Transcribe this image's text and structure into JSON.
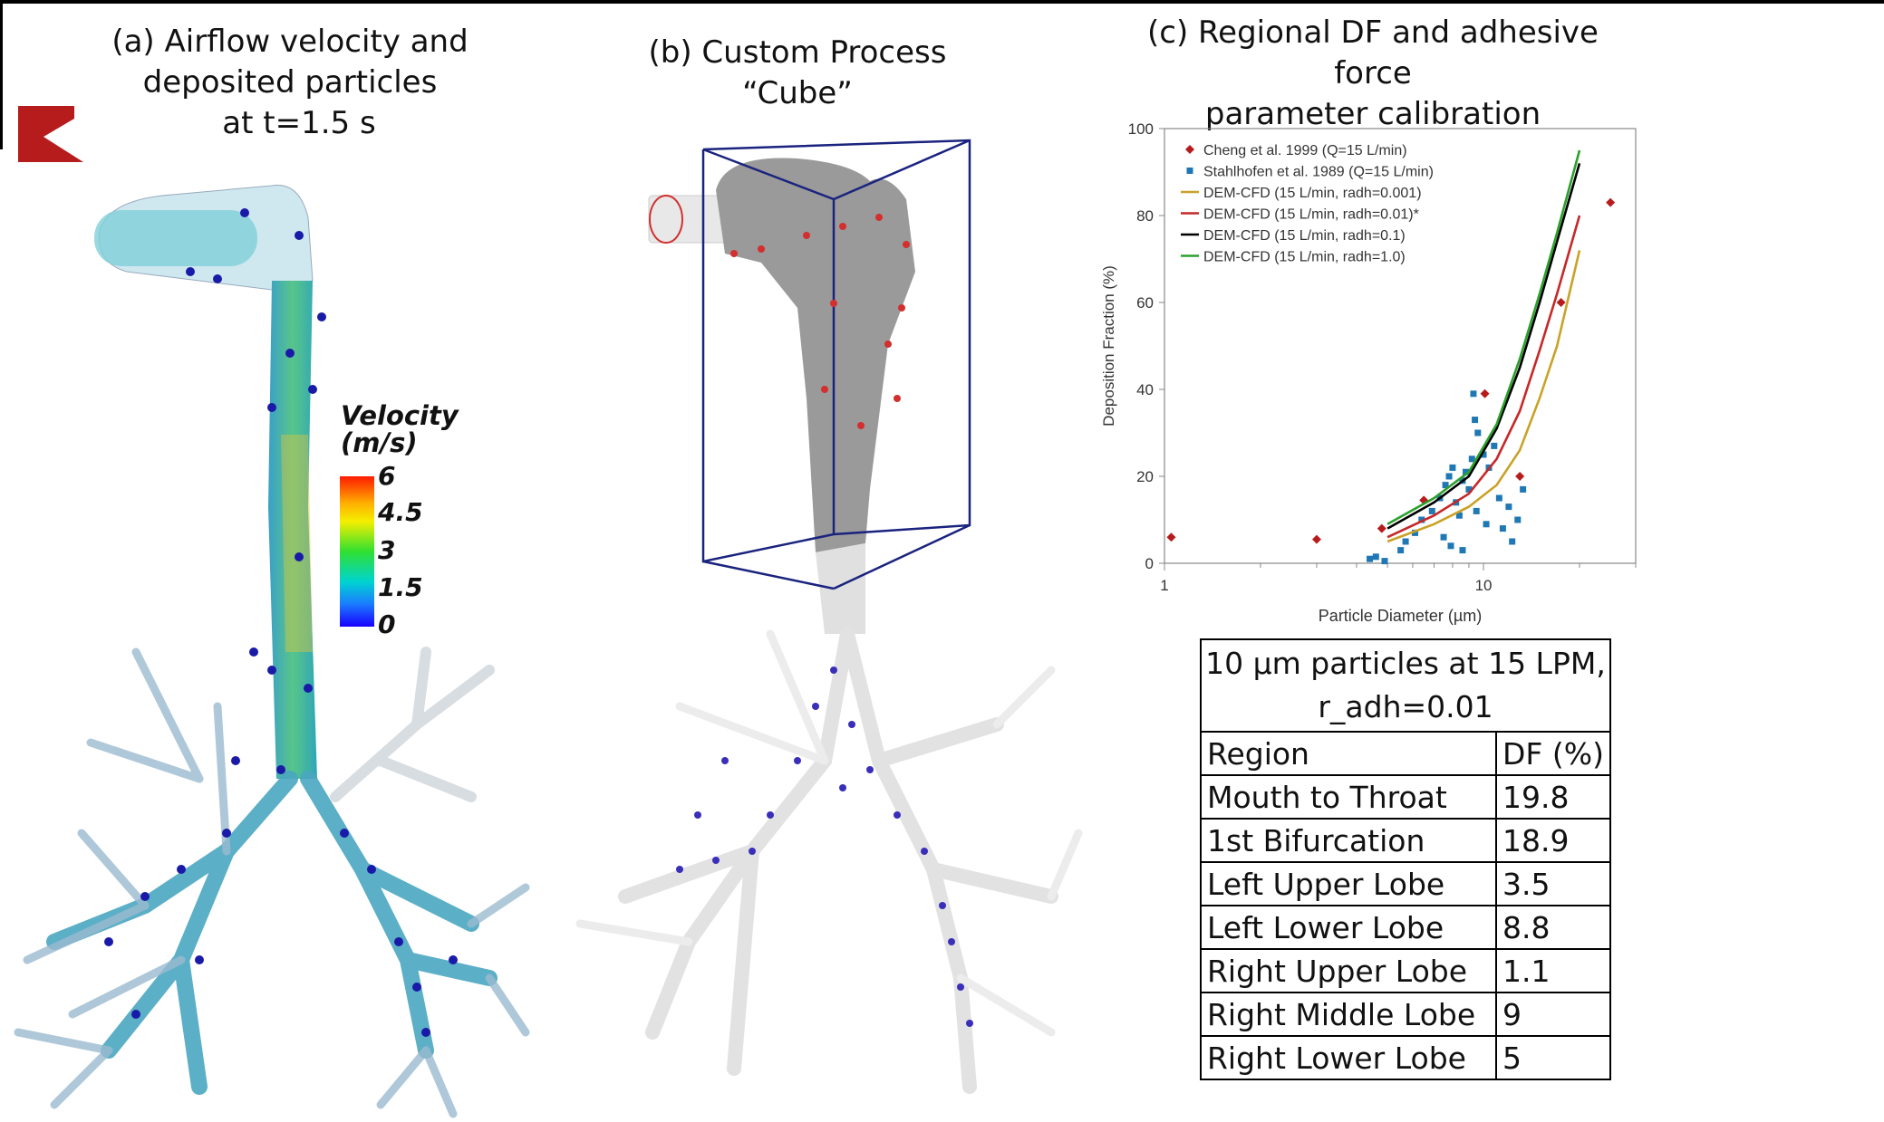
{
  "panel_a": {
    "title_lines": [
      "(a)  Airflow velocity and",
      "deposited particles",
      "at t=1.5 s"
    ],
    "colorbar": {
      "title_lines": [
        "Velocity",
        "(m/s)"
      ],
      "ticks": [
        "6",
        "4.5",
        "3",
        "1.5",
        "0"
      ],
      "colors": [
        "#ff1a00",
        "#f5ef00",
        "#30e030",
        "#00d4d0",
        "#1a00ff"
      ]
    }
  },
  "panel_b": {
    "title": "(b) Custom Process “Cube”"
  },
  "panel_c": {
    "title_lines": [
      "(c) Regional DF and adhesive force",
      "parameter calibration"
    ]
  },
  "chart_data": {
    "type": "scatter",
    "xlabel": "Particle Diameter (µm)",
    "ylabel": "Deposition Fraction (%)",
    "xscale": "log",
    "xlim": [
      1,
      30
    ],
    "ylim": [
      0,
      100
    ],
    "x_tick_labels": [
      "1",
      "10"
    ],
    "y_tick_labels": [
      "0",
      "20",
      "40",
      "60",
      "80",
      "100"
    ],
    "legend_position": "top-left",
    "series": [
      {
        "name": "Cheng et al. 1999 (Q=15 L/min)",
        "marker": "diamond",
        "color": "#b71c1c",
        "points": [
          [
            1.05,
            6
          ],
          [
            3.0,
            5.5
          ],
          [
            4.8,
            8
          ],
          [
            6.5,
            14.5
          ],
          [
            10.1,
            39
          ],
          [
            13.0,
            20
          ],
          [
            17.5,
            60
          ],
          [
            25.0,
            83
          ]
        ]
      },
      {
        "name": "Stahlhofen et al. 1989 (Q=15 L/min)",
        "marker": "square",
        "color": "#1f77b4",
        "points": [
          [
            4.4,
            1
          ],
          [
            4.6,
            1.5
          ],
          [
            4.9,
            0.5
          ],
          [
            5.5,
            3
          ],
          [
            5.7,
            5
          ],
          [
            6.1,
            7
          ],
          [
            6.4,
            10
          ],
          [
            6.9,
            12
          ],
          [
            7.3,
            15
          ],
          [
            7.6,
            18
          ],
          [
            7.8,
            20
          ],
          [
            8.0,
            22
          ],
          [
            8.2,
            14
          ],
          [
            8.4,
            11
          ],
          [
            8.6,
            19
          ],
          [
            8.8,
            21
          ],
          [
            9.0,
            17
          ],
          [
            9.2,
            24
          ],
          [
            9.4,
            33
          ],
          [
            9.3,
            39
          ],
          [
            9.6,
            30
          ],
          [
            10.0,
            25
          ],
          [
            10.4,
            22
          ],
          [
            10.8,
            27
          ],
          [
            11.2,
            15
          ],
          [
            11.5,
            8
          ],
          [
            12.0,
            13
          ],
          [
            12.3,
            5
          ],
          [
            12.8,
            10
          ],
          [
            13.3,
            17
          ],
          [
            7.5,
            6
          ],
          [
            7.9,
            4
          ],
          [
            8.6,
            3
          ],
          [
            9.5,
            12
          ],
          [
            10.2,
            9
          ]
        ]
      },
      {
        "name": "DEM-CFD (15 L/min, radh=0.001)",
        "type": "line",
        "color": "#c9a227",
        "points": [
          [
            5.0,
            5
          ],
          [
            7.0,
            9
          ],
          [
            9.0,
            13
          ],
          [
            11.0,
            18
          ],
          [
            13.0,
            26
          ],
          [
            15.0,
            38
          ],
          [
            17.0,
            50
          ],
          [
            20.0,
            72
          ]
        ]
      },
      {
        "name": "DEM-CFD (15 L/min, radh=0.01)*",
        "type": "line",
        "color": "#c62828",
        "points": [
          [
            5.0,
            6
          ],
          [
            7.0,
            11
          ],
          [
            9.0,
            16
          ],
          [
            11.0,
            24
          ],
          [
            13.0,
            35
          ],
          [
            15.0,
            49
          ],
          [
            17.0,
            62
          ],
          [
            20.0,
            80
          ]
        ]
      },
      {
        "name": "DEM-CFD (15 L/min, radh=0.1)",
        "type": "line",
        "color": "#000000",
        "points": [
          [
            5.0,
            8
          ],
          [
            7.0,
            14
          ],
          [
            9.0,
            20
          ],
          [
            11.0,
            31
          ],
          [
            13.0,
            45
          ],
          [
            15.0,
            60
          ],
          [
            17.0,
            74
          ],
          [
            20.0,
            92
          ]
        ]
      },
      {
        "name": "DEM-CFD (15 L/min, radh=1.0)",
        "type": "line",
        "color": "#2ca02c",
        "points": [
          [
            5.0,
            9
          ],
          [
            7.0,
            15
          ],
          [
            9.0,
            21
          ],
          [
            11.0,
            32
          ],
          [
            13.0,
            47
          ],
          [
            15.0,
            62
          ],
          [
            17.0,
            76
          ],
          [
            20.0,
            95
          ]
        ]
      }
    ]
  },
  "df_table": {
    "caption_lines": [
      "10 µm particles at 15 LPM,",
      "r_adh=0.01"
    ],
    "headers": [
      "Region",
      "DF (%)"
    ],
    "rows": [
      [
        "Mouth to Throat",
        "19.8"
      ],
      [
        "1st Bifurcation",
        "18.9"
      ],
      [
        "Left Upper Lobe",
        "3.5"
      ],
      [
        "Left Lower Lobe",
        "8.8"
      ],
      [
        "Right Upper Lobe",
        "1.1"
      ],
      [
        "Right Middle Lobe",
        "9"
      ],
      [
        "Right Lower Lobe",
        "5"
      ]
    ]
  }
}
